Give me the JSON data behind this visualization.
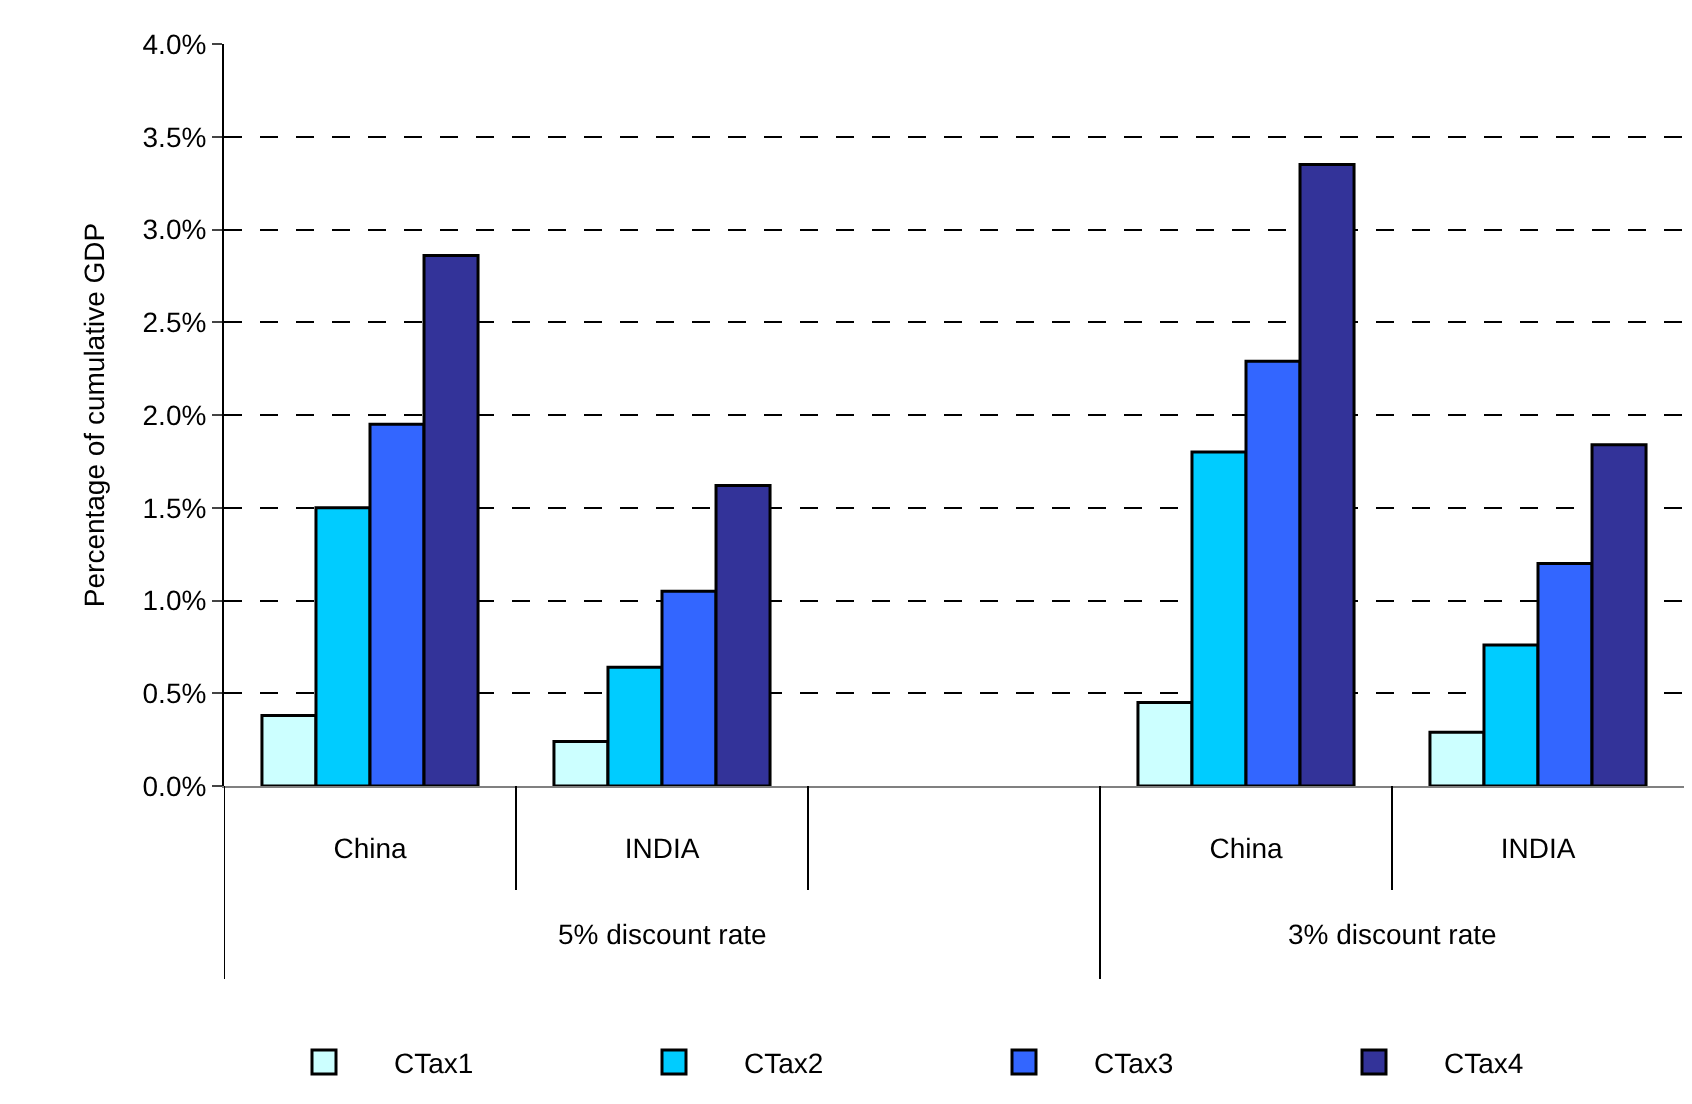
{
  "chart_data": {
    "type": "bar",
    "ylabel": "Percentage of cumulative GDP",
    "categories": [
      "China",
      "INDIA",
      null,
      "China",
      "INDIA"
    ],
    "annotations": [
      "5% discount rate",
      "3% discount rate"
    ],
    "series": [
      {
        "name": "CTax1",
        "color": "#ccffff",
        "values": [
          0.38,
          0.24,
          null,
          0.45,
          0.29
        ]
      },
      {
        "name": "CTax2",
        "color": "#00ccff",
        "values": [
          1.5,
          0.64,
          null,
          1.8,
          0.76
        ]
      },
      {
        "name": "CTax3",
        "color": "#3366ff",
        "values": [
          1.95,
          1.05,
          null,
          2.29,
          1.2
        ]
      },
      {
        "name": "CTax4",
        "color": "#333399",
        "values": [
          2.86,
          1.62,
          null,
          3.35,
          1.84
        ]
      }
    ],
    "ylim": [
      0,
      4
    ],
    "yticks": [
      {
        "value": 0,
        "label": "0.0%"
      },
      {
        "value": 0.5,
        "label": "0.5%"
      },
      {
        "value": 1,
        "label": "1.0%"
      },
      {
        "value": 1.5,
        "label": "1.5%"
      },
      {
        "value": 2,
        "label": "2.0%"
      },
      {
        "value": 2.5,
        "label": "2.5%"
      },
      {
        "value": 3,
        "label": "3.0%"
      },
      {
        "value": 3.5,
        "label": "3.5%"
      },
      {
        "value": 4,
        "label": "4.0%"
      }
    ],
    "grid": "y",
    "legend": "bottom"
  }
}
